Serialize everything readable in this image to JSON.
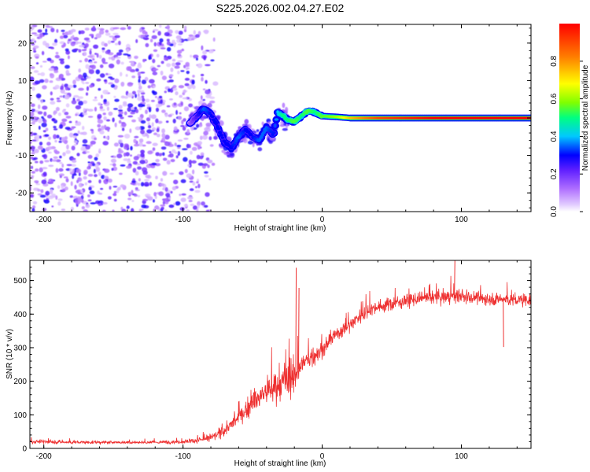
{
  "title": "S225.2026.002.04.27.E02",
  "chart_data": [
    {
      "type": "heatmap",
      "xlabel": "Height of straight line (km)",
      "ylabel": "Frequency (Hz)",
      "xlim": [
        -210,
        150
      ],
      "ylim": [
        -25,
        25
      ],
      "x_ticks": [
        -200,
        -100,
        0,
        100
      ],
      "x_tick_labels": [
        "-200",
        "-100",
        "0",
        "100"
      ],
      "y_ticks": [
        -20,
        -10,
        0,
        10,
        20
      ],
      "y_tick_labels": [
        "-20",
        "-10",
        "0",
        "10",
        "20"
      ],
      "grid": false,
      "colorbar": {
        "label": "Normalized spectral amplitude",
        "range": [
          0,
          1
        ],
        "ticks": [
          0.0,
          0.2,
          0.4,
          0.6,
          0.8
        ],
        "tick_labels": [
          "0.0",
          "0.2",
          "0.4",
          "0.6",
          "0.8"
        ],
        "colormap": [
          "#ffffff",
          "#e0c8ff",
          "#b070ff",
          "#6020ff",
          "#0000ff",
          "#00c8ff",
          "#00ff80",
          "#80ff00",
          "#ffff00",
          "#ff8000",
          "#ff0000"
        ]
      },
      "features": {
        "noise_region_x": [
          -210,
          -85
        ],
        "noise_amplitude": 0.25,
        "ridge": {
          "x": [
            -95,
            -85,
            -80,
            -75,
            -70,
            -65,
            -60,
            -55,
            -50,
            -45,
            -40,
            -35,
            -32,
            -30,
            -28,
            -25,
            -20,
            -15,
            -10,
            -5,
            0,
            10,
            20,
            40,
            60,
            80,
            100,
            120,
            150
          ],
          "y": [
            -1.5,
            2.5,
            1.0,
            -2.5,
            -6.5,
            -8.0,
            -5.0,
            -3.0,
            -5.0,
            -6.0,
            -2.5,
            -4.5,
            1.5,
            1.0,
            0.5,
            -0.5,
            -1.0,
            0.5,
            2.0,
            1.5,
            0.5,
            0.3,
            0.0,
            0.0,
            0.0,
            0.0,
            0.0,
            0.0,
            0.0
          ],
          "amplitude": [
            0.15,
            0.35,
            0.3,
            0.3,
            0.3,
            0.3,
            0.35,
            0.3,
            0.3,
            0.35,
            0.35,
            0.3,
            0.4,
            0.45,
            0.5,
            0.5,
            0.55,
            0.5,
            0.55,
            0.5,
            0.55,
            0.6,
            0.75,
            0.9,
            0.95,
            1.0,
            1.0,
            1.0,
            1.0
          ]
        }
      }
    },
    {
      "type": "line",
      "xlabel": "Height of straight line (km)",
      "ylabel": "SNR (10 * v/v)",
      "xlim": [
        -210,
        150
      ],
      "ylim": [
        0,
        560
      ],
      "x_ticks": [
        -200,
        -100,
        0,
        100
      ],
      "x_tick_labels": [
        "-200",
        "-100",
        "0",
        "100"
      ],
      "y_ticks": [
        0,
        100,
        200,
        300,
        400,
        500
      ],
      "y_tick_labels": [
        "0",
        "100",
        "200",
        "300",
        "400",
        "500"
      ],
      "grid": false,
      "series": [
        {
          "name": "SNR",
          "color": "#ee3030",
          "x": [
            -210,
            -200,
            -180,
            -160,
            -140,
            -120,
            -100,
            -90,
            -80,
            -75,
            -70,
            -65,
            -60,
            -55,
            -50,
            -45,
            -40,
            -35,
            -30,
            -25,
            -20,
            -18,
            -15,
            -10,
            -5,
            0,
            5,
            10,
            15,
            20,
            25,
            30,
            35,
            40,
            50,
            60,
            70,
            80,
            90,
            95,
            100,
            110,
            120,
            130,
            140,
            150
          ],
          "y": [
            20,
            20,
            18,
            18,
            18,
            18,
            20,
            24,
            30,
            42,
            55,
            72,
            92,
            112,
            135,
            155,
            170,
            178,
            188,
            198,
            212,
            230,
            248,
            265,
            278,
            292,
            318,
            340,
            355,
            368,
            388,
            402,
            415,
            422,
            430,
            440,
            445,
            448,
            452,
            455,
            450,
            448,
            445,
            445,
            440,
            445
          ],
          "noise": [
            10,
            10,
            8,
            8,
            8,
            8,
            10,
            12,
            18,
            25,
            30,
            35,
            40,
            45,
            55,
            65,
            80,
            85,
            90,
            90,
            80,
            80,
            60,
            55,
            50,
            45,
            40,
            40,
            40,
            40,
            40,
            38,
            36,
            35,
            35,
            35,
            35,
            35,
            35,
            35,
            35,
            35,
            35,
            35,
            35,
            35
          ],
          "spikes": [
            {
              "x": -19,
              "y": 538
            },
            {
              "x": -17,
              "y": 478
            },
            {
              "x": 95,
              "y": 562
            },
            {
              "x": 130,
              "y": 302
            }
          ]
        }
      ]
    }
  ]
}
